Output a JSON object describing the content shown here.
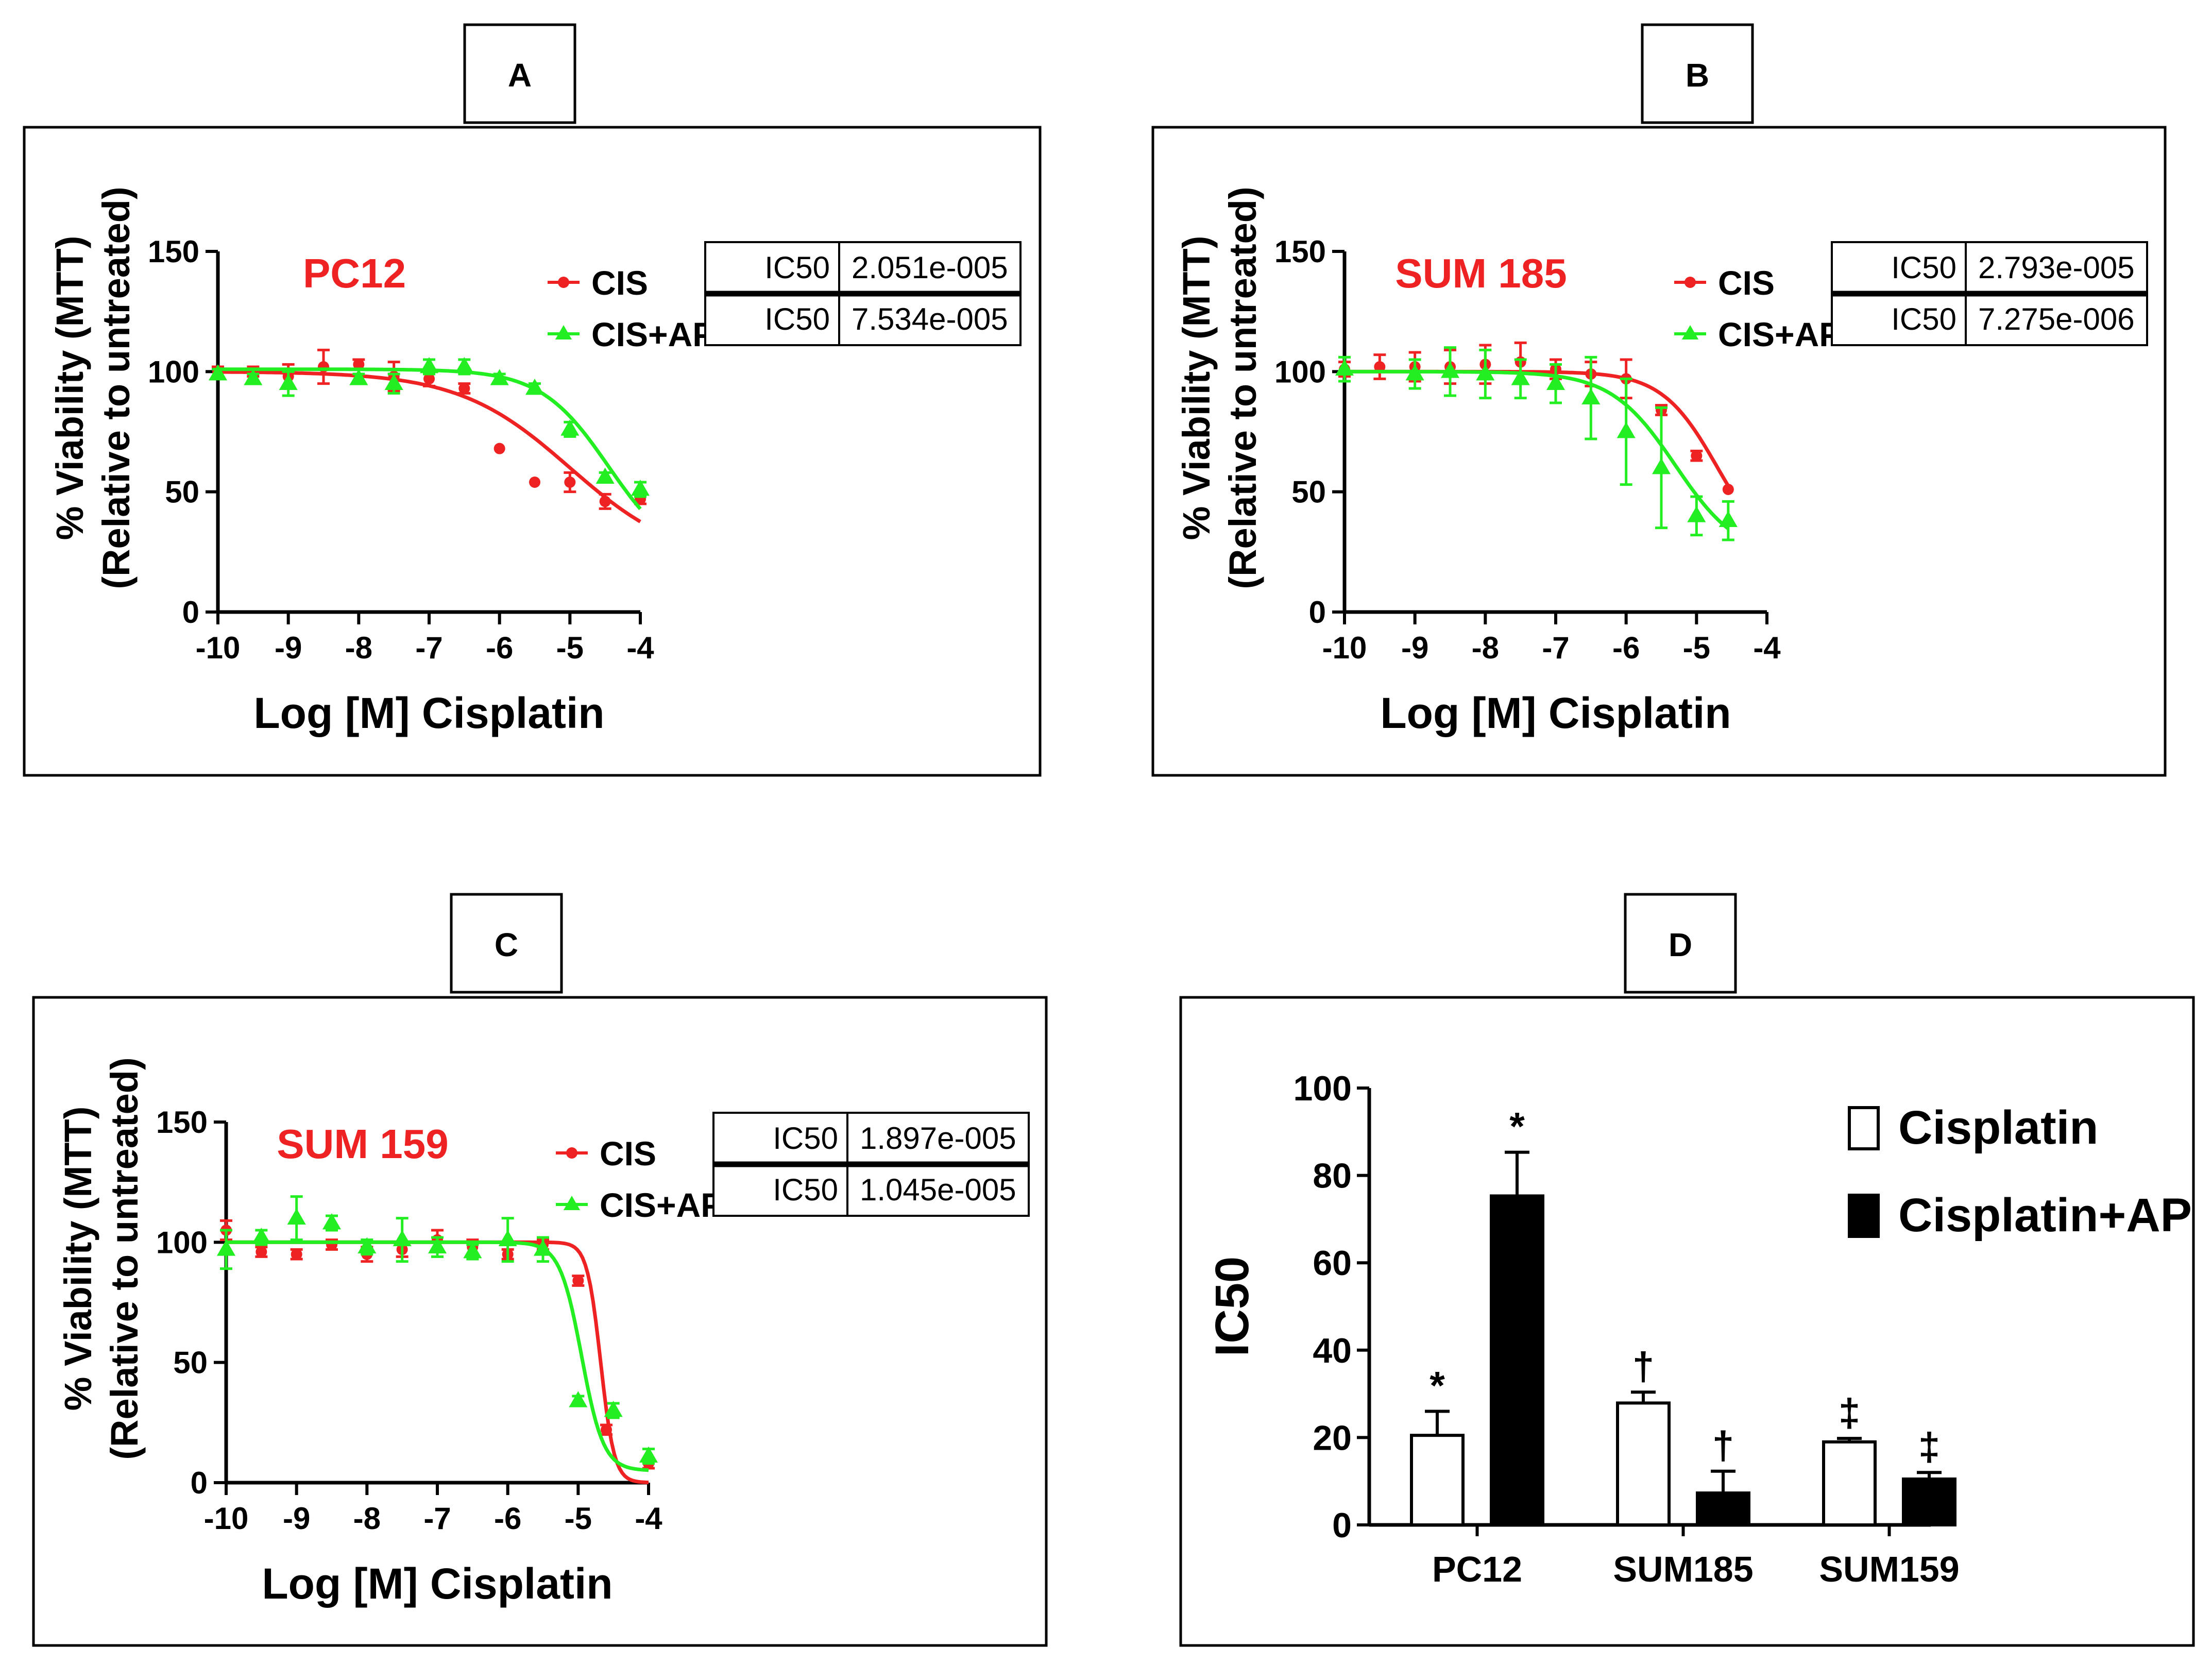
{
  "colors": {
    "cis": "#ee2222",
    "cisap": "#22ee22",
    "bar_cisplatin": "#ffffff",
    "bar_cisplatin_ap": "#000000",
    "axis": "#000000"
  },
  "chart_data": [
    {
      "panel": "A",
      "type": "line",
      "annotation": "PC12",
      "xlabel": "Log [M] Cisplatin",
      "ylabel": [
        "% Viability (MTT)",
        "(Relative to untreated)"
      ],
      "xlim": [
        -10,
        -4
      ],
      "ylim": [
        0,
        150
      ],
      "xticks": [
        -10,
        -9,
        -8,
        -7,
        -6,
        -5,
        -4
      ],
      "yticks": [
        0,
        50,
        100,
        150
      ],
      "legend_position": "top-center",
      "ic50_table": [
        {
          "label": "IC50",
          "value": "2.051e-005"
        },
        {
          "label": "IC50",
          "value": "7.534e-005"
        }
      ],
      "series": [
        {
          "name": "CIS",
          "color_key": "cis",
          "marker": "circle",
          "curve": {
            "top": 100,
            "bottom": 20,
            "log_ic50": -5.0,
            "hill": -0.55
          },
          "points": [
            {
              "x": -10,
              "y": 100,
              "err": 2
            },
            {
              "x": -9.5,
              "y": 100,
              "err": 2
            },
            {
              "x": -9,
              "y": 98,
              "err": 5
            },
            {
              "x": -8.5,
              "y": 102,
              "err": 7
            },
            {
              "x": -8,
              "y": 103,
              "err": 2
            },
            {
              "x": -7.5,
              "y": 98,
              "err": 6
            },
            {
              "x": -7,
              "y": 97,
              "err": 3
            },
            {
              "x": -6.5,
              "y": 93,
              "err": 2
            },
            {
              "x": -6,
              "y": 68,
              "err": 1
            },
            {
              "x": -5.5,
              "y": 54,
              "err": 1
            },
            {
              "x": -5,
              "y": 54,
              "err": 4
            },
            {
              "x": -4.5,
              "y": 46,
              "err": 3
            },
            {
              "x": -4,
              "y": 47,
              "err": 2
            }
          ]
        },
        {
          "name": "CIS+AP",
          "color_key": "cisap",
          "marker": "triangle",
          "curve": {
            "top": 101,
            "bottom": 20,
            "log_ic50": -4.45,
            "hill": -0.9
          },
          "points": [
            {
              "x": -10,
              "y": 99,
              "err": 2
            },
            {
              "x": -9.5,
              "y": 97,
              "err": 2
            },
            {
              "x": -9,
              "y": 95,
              "err": 5
            },
            {
              "x": -8,
              "y": 97,
              "err": 2
            },
            {
              "x": -7.5,
              "y": 95,
              "err": 4
            },
            {
              "x": -7,
              "y": 102,
              "err": 3
            },
            {
              "x": -6.5,
              "y": 102,
              "err": 3
            },
            {
              "x": -6,
              "y": 97,
              "err": 2
            },
            {
              "x": -5.5,
              "y": 93,
              "err": 2
            },
            {
              "x": -5,
              "y": 76,
              "err": 3
            },
            {
              "x": -4.5,
              "y": 56,
              "err": 2
            },
            {
              "x": -4,
              "y": 51,
              "err": 3
            }
          ]
        }
      ]
    },
    {
      "panel": "B",
      "type": "line",
      "annotation": "SUM 185",
      "xlabel": "Log [M] Cisplatin",
      "ylabel": [
        "% Viability (MTT)",
        "(Relative to untreated)"
      ],
      "xlim": [
        -10,
        -4
      ],
      "ylim": [
        0,
        150
      ],
      "xticks": [
        -10,
        -9,
        -8,
        -7,
        -6,
        -5,
        -4
      ],
      "yticks": [
        0,
        50,
        100,
        150
      ],
      "legend_position": "top-center",
      "ic50_table": [
        {
          "label": "IC50",
          "value": "2.793e-005"
        },
        {
          "label": "IC50",
          "value": "7.275e-006"
        }
      ],
      "series": [
        {
          "name": "CIS",
          "color_key": "cis",
          "marker": "circle",
          "curve": {
            "top": 100,
            "bottom": 20,
            "log_ic50": -4.7,
            "hill": -1.1
          },
          "points": [
            {
              "x": -10,
              "y": 101,
              "err": 3
            },
            {
              "x": -9.5,
              "y": 102,
              "err": 5
            },
            {
              "x": -9,
              "y": 102,
              "err": 6
            },
            {
              "x": -8.5,
              "y": 102,
              "err": 7
            },
            {
              "x": -8,
              "y": 103,
              "err": 8
            },
            {
              "x": -7.5,
              "y": 104,
              "err": 8
            },
            {
              "x": -7,
              "y": 101,
              "err": 4
            },
            {
              "x": -6.5,
              "y": 99,
              "err": 5
            },
            {
              "x": -6,
              "y": 97,
              "err": 8
            },
            {
              "x": -5.5,
              "y": 84,
              "err": 2
            },
            {
              "x": -5,
              "y": 65,
              "err": 2
            },
            {
              "x": -4.55,
              "y": 51,
              "err": 1
            }
          ]
        },
        {
          "name": "CIS+AP",
          "color_key": "cisap",
          "marker": "triangle",
          "curve": {
            "top": 100,
            "bottom": 22,
            "log_ic50": -5.3,
            "hill": -0.95
          },
          "points": [
            {
              "x": -10,
              "y": 101,
              "err": 5
            },
            {
              "x": -9,
              "y": 99,
              "err": 6
            },
            {
              "x": -8.5,
              "y": 100,
              "err": 10
            },
            {
              "x": -8,
              "y": 99,
              "err": 10
            },
            {
              "x": -7.5,
              "y": 97,
              "err": 8
            },
            {
              "x": -7,
              "y": 95,
              "err": 8
            },
            {
              "x": -6.5,
              "y": 89,
              "err": 17
            },
            {
              "x": -6,
              "y": 75,
              "err": 22
            },
            {
              "x": -5.5,
              "y": 60,
              "err": 25
            },
            {
              "x": -5,
              "y": 40,
              "err": 8
            },
            {
              "x": -4.55,
              "y": 38,
              "err": 8
            }
          ]
        }
      ]
    },
    {
      "panel": "C",
      "type": "line",
      "annotation": "SUM 159",
      "xlabel": "Log [M] Cisplatin",
      "ylabel": [
        "% Viability (MTT)",
        "(Relative to untreated)"
      ],
      "xlim": [
        -10,
        -4
      ],
      "ylim": [
        0,
        150
      ],
      "xticks": [
        -10,
        -9,
        -8,
        -7,
        -6,
        -5,
        -4
      ],
      "yticks": [
        0,
        50,
        100,
        150
      ],
      "legend_position": "top-center",
      "ic50_table": [
        {
          "label": "IC50",
          "value": "1.897e-005"
        },
        {
          "label": "IC50",
          "value": "1.045e-005"
        }
      ],
      "series": [
        {
          "name": "CIS",
          "color_key": "cis",
          "marker": "circle",
          "curve": {
            "top": 100,
            "bottom": 0,
            "log_ic50": -4.68,
            "hill": -4.5
          },
          "points": [
            {
              "x": -10,
              "y": 105,
              "err": 4
            },
            {
              "x": -9.5,
              "y": 96,
              "err": 2
            },
            {
              "x": -9,
              "y": 95,
              "err": 2
            },
            {
              "x": -8.5,
              "y": 99,
              "err": 2
            },
            {
              "x": -8,
              "y": 95,
              "err": 3
            },
            {
              "x": -7.5,
              "y": 97,
              "err": 3
            },
            {
              "x": -7,
              "y": 101,
              "err": 4
            },
            {
              "x": -6.5,
              "y": 98,
              "err": 3
            },
            {
              "x": -6,
              "y": 95,
              "err": 2
            },
            {
              "x": -5.5,
              "y": 99,
              "err": 2
            },
            {
              "x": -5,
              "y": 84,
              "err": 2
            },
            {
              "x": -4.6,
              "y": 22,
              "err": 2
            },
            {
              "x": -4,
              "y": 8,
              "err": 2
            }
          ]
        },
        {
          "name": "CIS+AP",
          "color_key": "cisap",
          "marker": "triangle",
          "curve": {
            "top": 100,
            "bottom": 5,
            "log_ic50": -4.95,
            "hill": -2.8
          },
          "points": [
            {
              "x": -10,
              "y": 97,
              "err": 8
            },
            {
              "x": -9.5,
              "y": 102,
              "err": 3
            },
            {
              "x": -9,
              "y": 110,
              "err": 9
            },
            {
              "x": -8.5,
              "y": 108,
              "err": 3
            },
            {
              "x": -8,
              "y": 98,
              "err": 3
            },
            {
              "x": -7.5,
              "y": 101,
              "err": 9
            },
            {
              "x": -7,
              "y": 98,
              "err": 4
            },
            {
              "x": -6.5,
              "y": 96,
              "err": 3
            },
            {
              "x": -6,
              "y": 101,
              "err": 9
            },
            {
              "x": -5.5,
              "y": 97,
              "err": 5
            },
            {
              "x": -5,
              "y": 34,
              "err": 2
            },
            {
              "x": -4.5,
              "y": 30,
              "err": 3
            },
            {
              "x": -4,
              "y": 11,
              "err": 3
            }
          ]
        }
      ]
    },
    {
      "panel": "D",
      "type": "bar",
      "title": "",
      "xlabel": "",
      "ylabel": "IC50",
      "categories": [
        "PC12",
        "SUM185",
        "SUM159"
      ],
      "ylim": [
        0,
        100
      ],
      "yticks": [
        0,
        20,
        40,
        60,
        80,
        100
      ],
      "legend_position": "top-right",
      "series": [
        {
          "name": "Cisplatin",
          "color_key": "bar_cisplatin",
          "values": [
            20.5,
            27.9,
            19.0
          ],
          "errors": [
            5.5,
            2.5,
            0.8
          ],
          "significance": [
            "*",
            "†",
            "‡"
          ]
        },
        {
          "name": "Cisplatin+AP",
          "color_key": "bar_cisplatin_ap",
          "values": [
            75.3,
            7.3,
            10.5
          ],
          "errors": [
            10.0,
            5.0,
            1.5
          ],
          "significance": [
            "*",
            "†",
            "‡"
          ]
        }
      ]
    }
  ]
}
